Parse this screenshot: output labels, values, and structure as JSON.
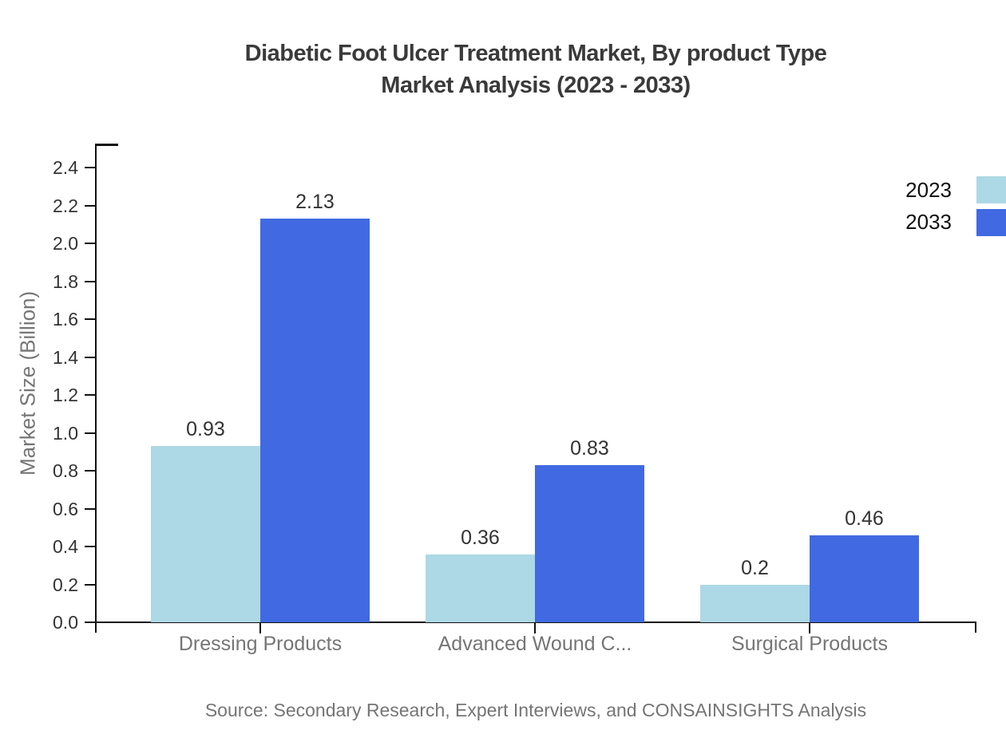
{
  "title": {
    "line1": "Diabetic Foot Ulcer Treatment Market, By product Type",
    "line2": "Market Analysis (2023 - 2033)"
  },
  "y_axis": {
    "label": "Market Size (Billion)"
  },
  "source": "Source: Secondary Research, Expert Interviews, and CONSAINSIGHTS Analysis",
  "legend": [
    {
      "label": "2023",
      "color": "#ADD8E6"
    },
    {
      "label": "2033",
      "color": "#4169E1"
    }
  ],
  "colors": {
    "series_2023": "#ADD8E6",
    "series_2033": "#4169E1",
    "axis": "#111111",
    "title_text": "#3a3a3a",
    "muted_text": "#757575",
    "tick_text": "#333333"
  },
  "chart_data": {
    "type": "bar",
    "title": "Diabetic Foot Ulcer Treatment Market, By product Type Market Analysis (2023 - 2033)",
    "categories": [
      "Dressing Products",
      "Advanced Wound C...",
      "Surgical Products"
    ],
    "series": [
      {
        "name": "2023",
        "color": "#ADD8E6",
        "values": [
          0.93,
          0.36,
          0.2
        ],
        "labels": [
          "0.93",
          "0.36",
          "0.2"
        ]
      },
      {
        "name": "2033",
        "color": "#4169E1",
        "values": [
          2.13,
          0.83,
          0.46
        ],
        "labels": [
          "2.13",
          "0.83",
          "0.46"
        ]
      }
    ],
    "xlabel": "",
    "ylabel": "Market Size (Billion)",
    "ylim": [
      0,
      2.4
    ],
    "ytick_step": 0.2,
    "yticks": [
      "0.0",
      "0.2",
      "0.4",
      "0.6",
      "0.8",
      "1.0",
      "1.2",
      "1.4",
      "1.6",
      "1.8",
      "2.0",
      "2.2",
      "2.4"
    ],
    "grid": false,
    "legend_position": "top-right"
  }
}
